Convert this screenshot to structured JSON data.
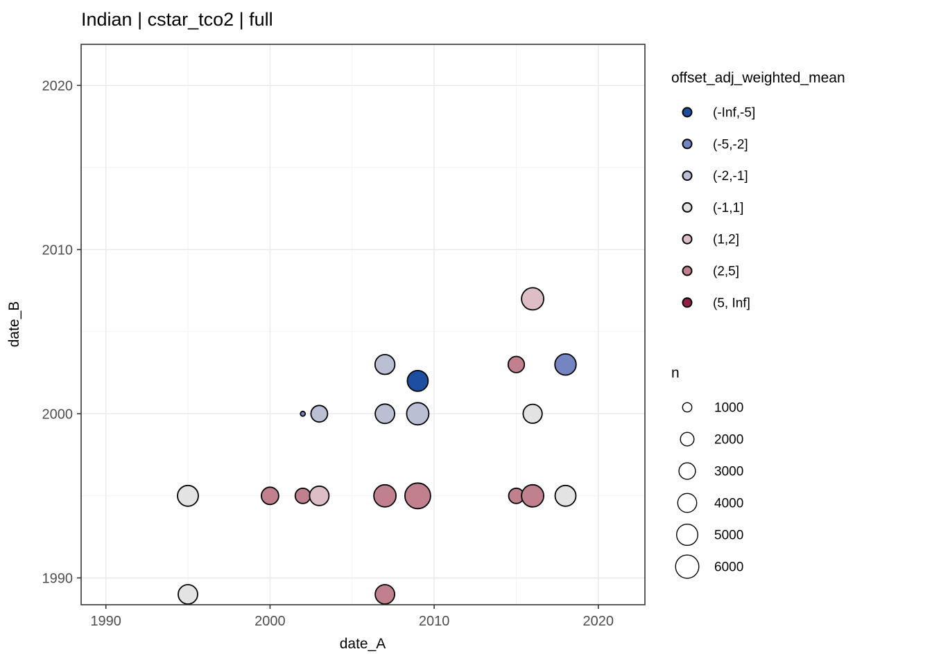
{
  "title": "Indian | cstar_tco2 | full",
  "axes": {
    "x": {
      "label": "date_A",
      "ticks": [
        1990,
        2000,
        2010,
        2020
      ]
    },
    "y": {
      "label": "date_B",
      "ticks": [
        1990,
        2000,
        2010,
        2020
      ]
    }
  },
  "legend_color": {
    "title": "offset_adj_weighted_mean",
    "items": [
      {
        "label": "(-Inf,-5]",
        "color": "#1d4ea0"
      },
      {
        "label": "(-5,-2]",
        "color": "#7485c1"
      },
      {
        "label": "(-2,-1]",
        "color": "#babfd4"
      },
      {
        "label": "(-1,1]",
        "color": "#e3e3e3"
      },
      {
        "label": "(1,2]",
        "color": "#ddbdc6"
      },
      {
        "label": "(2,5]",
        "color": "#c0808e"
      },
      {
        "label": "(5, Inf]",
        "color": "#8f2045"
      }
    ]
  },
  "legend_size": {
    "title": "n",
    "items": [
      {
        "label": "1000",
        "r": 6.7
      },
      {
        "label": "2000",
        "r": 9.8
      },
      {
        "label": "3000",
        "r": 11.9
      },
      {
        "label": "4000",
        "r": 13.7
      },
      {
        "label": "5000",
        "r": 15.3
      },
      {
        "label": "6000",
        "r": 16.8
      }
    ]
  },
  "chart_data": {
    "type": "scatter",
    "title": "Indian | cstar_tco2 | full",
    "xlabel": "date_A",
    "ylabel": "date_B",
    "xlim": [
      1988.5,
      2022.8
    ],
    "ylim": [
      1988.4,
      2022.5
    ],
    "grid": "on",
    "legend_position": "right",
    "color_variable": "offset_adj_weighted_mean",
    "size_variable": "n",
    "points": [
      {
        "x": 1995,
        "y": 1989,
        "bin": "(-1,1]",
        "n_est": 4400,
        "r": 14.0
      },
      {
        "x": 2007,
        "y": 1989,
        "bin": "(2,5]",
        "n_est": 4400,
        "r": 14.0
      },
      {
        "x": 1995,
        "y": 1995,
        "bin": "(-1,1]",
        "n_est": 5000,
        "r": 15.0
      },
      {
        "x": 2000,
        "y": 1995,
        "bin": "(2,5]",
        "n_est": 3500,
        "r": 12.5
      },
      {
        "x": 2002,
        "y": 1995,
        "bin": "(2,5]",
        "n_est": 2700,
        "r": 11.0
      },
      {
        "x": 2003,
        "y": 1995,
        "bin": "(1,2]",
        "n_est": 4400,
        "r": 14.0
      },
      {
        "x": 2007,
        "y": 1995,
        "bin": "(2,5]",
        "n_est": 5700,
        "r": 16.0
      },
      {
        "x": 2009,
        "y": 1995,
        "bin": "(2,5]",
        "n_est": 7600,
        "r": 18.5
      },
      {
        "x": 2015,
        "y": 1995,
        "bin": "(2,5]",
        "n_est": 2700,
        "r": 11.0
      },
      {
        "x": 2016,
        "y": 1995,
        "bin": "(2,5]",
        "n_est": 5700,
        "r": 16.0
      },
      {
        "x": 2018,
        "y": 1995,
        "bin": "(-1,1]",
        "n_est": 5000,
        "r": 15.0
      },
      {
        "x": 2002,
        "y": 2000,
        "bin": "(-5,-2]",
        "n_est": 270,
        "r": 3.5
      },
      {
        "x": 2003,
        "y": 2000,
        "bin": "(-2,-1]",
        "n_est": 3200,
        "r": 12.0
      },
      {
        "x": 2007,
        "y": 2000,
        "bin": "(-2,-1]",
        "n_est": 4400,
        "r": 14.0
      },
      {
        "x": 2009,
        "y": 2000,
        "bin": "(-2,-1]",
        "n_est": 5700,
        "r": 16.0
      },
      {
        "x": 2009,
        "y": 2002,
        "bin": "(-Inf,-5]",
        "n_est": 5000,
        "r": 15.0
      },
      {
        "x": 2007,
        "y": 2003,
        "bin": "(-2,-1]",
        "n_est": 4500,
        "r": 14.3
      },
      {
        "x": 2015,
        "y": 2003,
        "bin": "(2,5]",
        "n_est": 3000,
        "r": 11.7
      },
      {
        "x": 2018,
        "y": 2003,
        "bin": "(-5,-2]",
        "n_est": 5200,
        "r": 15.3
      },
      {
        "x": 2016,
        "y": 2000,
        "bin": "(-1,1]",
        "n_est": 4200,
        "r": 13.7
      },
      {
        "x": 2016,
        "y": 2007,
        "bin": "(1,2]",
        "n_est": 5700,
        "r": 16.0
      }
    ]
  },
  "style": {
    "panel_border_color": "#333333",
    "grid_major_color": "#e9e9e9",
    "grid_minor_color": "#f4f4f4",
    "point_stroke_color": "#000000",
    "tick_color": "#333333"
  }
}
